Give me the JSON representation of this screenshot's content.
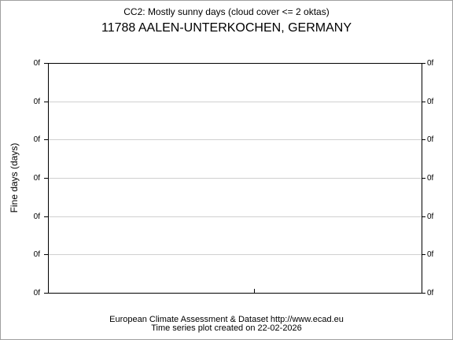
{
  "chart_data": {
    "type": "line",
    "title": "CC2: Mostly sunny days (cloud cover <= 2 oktas)",
    "subtitle": "11788 AALEN-UNTERKOCHEN, GERMANY",
    "ylabel": "Fine days (days)",
    "annotations": [
      "European Climate Assessment & Dataset  http://www.ecad.eu",
      "Time series plot created on 22-02-2026"
    ],
    "ylim": [
      0,
      6
    ],
    "yticks": [
      {
        "value": 0,
        "label": "0f"
      },
      {
        "value": 1,
        "label": "0f"
      },
      {
        "value": 2,
        "label": "0f"
      },
      {
        "value": 3,
        "label": "0f"
      },
      {
        "value": 4,
        "label": "0f"
      },
      {
        "value": 5,
        "label": "0f"
      },
      {
        "value": 6,
        "label": "0f"
      }
    ],
    "grid": true
  }
}
